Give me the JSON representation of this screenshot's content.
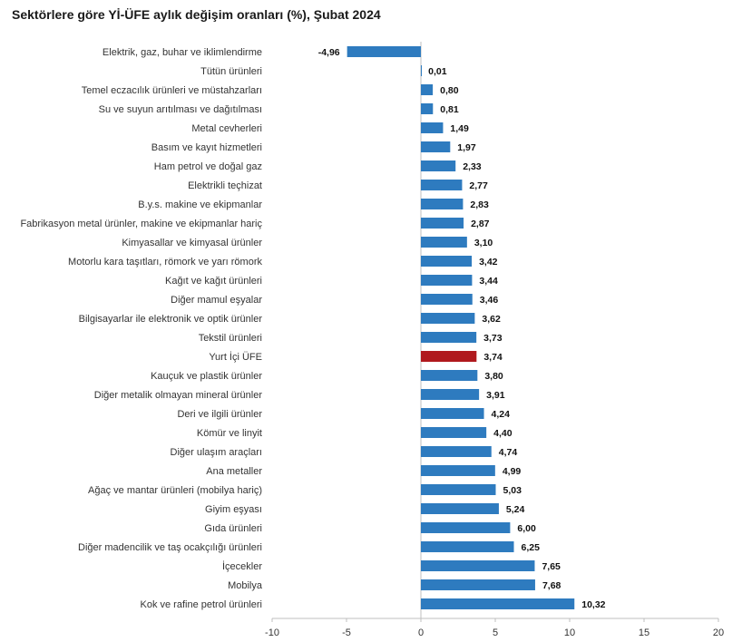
{
  "chart_data": {
    "type": "bar",
    "orientation": "horizontal",
    "title": "Sektörlere göre Yİ-ÜFE aylık değişim oranları (%), Şubat 2024",
    "xlim": [
      -10,
      20
    ],
    "xticks": [
      -10,
      -5,
      0,
      5,
      10,
      15,
      20
    ],
    "grid": false,
    "legend": "none",
    "colors": {
      "default": "#2e7bbf",
      "highlight": "#b0191e"
    },
    "highlight_category": "Yurt İçi ÜFE",
    "categories": [
      "Elektrik, gaz, buhar ve iklimlendirme",
      "Tütün ürünleri",
      "Temel eczacılık ürünleri ve müstahzarları",
      "Su ve suyun arıtılması ve dağıtılması",
      "Metal cevherleri",
      "Basım ve kayıt hizmetleri",
      "Ham petrol ve doğal gaz",
      "Elektrikli teçhizat",
      "B.y.s. makine ve ekipmanlar",
      "Fabrikasyon metal ürünler, makine ve ekipmanlar hariç",
      "Kimyasallar ve kimyasal ürünler",
      "Motorlu kara taşıtları, römork ve yarı römork",
      "Kağıt ve kağıt ürünleri",
      "Diğer mamul eşyalar",
      "Bilgisayarlar ile elektronik ve optik ürünler",
      "Tekstil ürünleri",
      "Yurt İçi ÜFE",
      "Kauçuk ve plastik ürünler",
      "Diğer metalik olmayan mineral ürünler",
      "Deri ve ilgili ürünler",
      "Kömür ve linyit",
      "Diğer ulaşım araçları",
      "Ana metaller",
      "Ağaç ve mantar ürünleri (mobilya hariç)",
      "Giyim eşyası",
      "Gıda ürünleri",
      "Diğer madencilik ve taş ocakçılığı ürünleri",
      "İçecekler",
      "Mobilya",
      "Kok ve rafine petrol ürünleri"
    ],
    "values": [
      -4.96,
      0.01,
      0.8,
      0.81,
      1.49,
      1.97,
      2.33,
      2.77,
      2.83,
      2.87,
      3.1,
      3.42,
      3.44,
      3.46,
      3.62,
      3.73,
      3.74,
      3.8,
      3.91,
      4.24,
      4.4,
      4.74,
      4.99,
      5.03,
      5.24,
      6.0,
      6.25,
      7.65,
      7.68,
      10.32
    ],
    "value_labels": [
      "-4,96",
      "0,01",
      "0,80",
      "0,81",
      "1,49",
      "1,97",
      "2,33",
      "2,77",
      "2,83",
      "2,87",
      "3,10",
      "3,42",
      "3,44",
      "3,46",
      "3,62",
      "3,73",
      "3,74",
      "3,80",
      "3,91",
      "4,24",
      "4,40",
      "4,74",
      "4,99",
      "5,03",
      "5,24",
      "6,00",
      "6,25",
      "7,65",
      "7,68",
      "10,32"
    ]
  }
}
